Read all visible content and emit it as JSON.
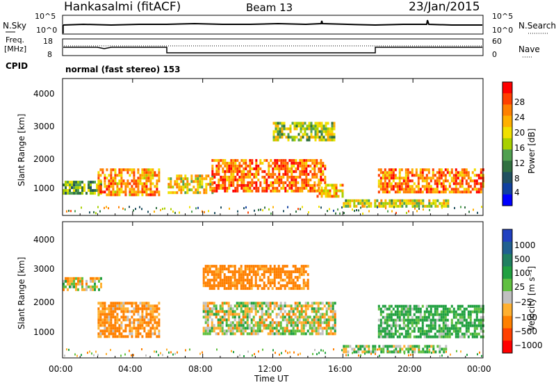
{
  "header": {
    "station": "Hankasalmi (fitACF)",
    "beam": "Beam 13",
    "date": "23/Jan/2015"
  },
  "noise_panel": {
    "left_label": "N.Sky",
    "left_ticks": [
      "10^5",
      "10^0"
    ],
    "right_ticks": [
      "10^5",
      "10^0"
    ],
    "right_label": "N.Search"
  },
  "freq_panel": {
    "left_label_line1": "Freq.",
    "left_label_line2": "[MHz]",
    "left_ticks": [
      "18",
      "8"
    ],
    "right_ticks": [
      "60",
      "0"
    ],
    "right_label": "Nave"
  },
  "cpid": {
    "label": "CPID",
    "text": "normal (fast stereo) 153"
  },
  "axes": {
    "y_label": "Slant Range [km]",
    "y_ticks": [
      "4000",
      "3000",
      "2000",
      "1000"
    ],
    "x_label": "Time UT",
    "x_ticks": [
      "00:00",
      "04:00",
      "08:00",
      "12:00",
      "16:00",
      "20:00",
      "00:00"
    ]
  },
  "power_scale": {
    "label": "Power [dB]",
    "ticks": [
      "28",
      "24",
      "20",
      "16",
      "12",
      "8",
      "4"
    ],
    "colors": [
      "#ff0000",
      "#ff4000",
      "#ff8000",
      "#ffb000",
      "#f0e000",
      "#a8d000",
      "#50a050",
      "#307040",
      "#205060",
      "#1040a0",
      "#0000ff"
    ]
  },
  "velocity_scale": {
    "label": "Velocity [m s⁻¹]",
    "ticks": [
      "1000",
      "500",
      "100",
      "25",
      "−25",
      "−100",
      "−500",
      "−1000"
    ],
    "colors": [
      "#2040c0",
      "#206090",
      "#208060",
      "#20a040",
      "#60c040",
      "#c0c0c0",
      "#ffb030",
      "#ff8000",
      "#ff4000",
      "#ff0000"
    ]
  },
  "chart_data": [
    {
      "type": "heatmap",
      "title": "Power",
      "x": [
        "00:00",
        "04:00",
        "08:00",
        "12:00",
        "16:00",
        "20:00",
        "00:00"
      ],
      "xlabel": "Time UT",
      "ylabel": "Slant Range [km]",
      "ylim": [
        180,
        4600
      ],
      "colorbar": "Power [dB]",
      "colorbar_range": [
        0,
        32
      ],
      "regions": [
        {
          "t_start": 0.0,
          "t_end": 2.2,
          "range_km": [
            900,
            1300
          ],
          "value_db": 14
        },
        {
          "t_start": 2.0,
          "t_end": 5.5,
          "range_km": [
            850,
            1700
          ],
          "value_db": 24
        },
        {
          "t_start": 6.0,
          "t_end": 8.5,
          "range_km": [
            900,
            1500
          ],
          "value_db": 20
        },
        {
          "t_start": 8.5,
          "t_end": 15.0,
          "range_km": [
            950,
            2000
          ],
          "value_db": 26
        },
        {
          "t_start": 12.0,
          "t_end": 15.5,
          "range_km": [
            2600,
            3200
          ],
          "value_db": 16
        },
        {
          "t_start": 14.5,
          "t_end": 16.0,
          "range_km": [
            800,
            1200
          ],
          "value_db": 22
        },
        {
          "t_start": 18.0,
          "t_end": 24.0,
          "range_km": [
            900,
            1700
          ],
          "value_db": 26
        },
        {
          "t_start": 16.0,
          "t_end": 22.0,
          "range_km": [
            450,
            700
          ],
          "value_db": 18
        }
      ]
    },
    {
      "type": "heatmap",
      "title": "Velocity",
      "x": [
        "00:00",
        "04:00",
        "08:00",
        "12:00",
        "16:00",
        "20:00",
        "00:00"
      ],
      "xlabel": "Time UT",
      "ylabel": "Slant Range [km]",
      "ylim": [
        180,
        4600
      ],
      "colorbar": "Velocity [m s⁻¹]",
      "colorbar_range": [
        -1000,
        1000
      ],
      "regions": [
        {
          "t_start": 0.0,
          "t_end": 2.2,
          "range_km": [
            2400,
            2800
          ],
          "value_ms": 0
        },
        {
          "t_start": 2.0,
          "t_end": 5.5,
          "range_km": [
            850,
            2000
          ],
          "value_ms": -150
        },
        {
          "t_start": 8.0,
          "t_end": 15.5,
          "range_km": [
            1000,
            2000
          ],
          "value_ms": 0
        },
        {
          "t_start": 8.0,
          "t_end": 14.0,
          "range_km": [
            2400,
            3200
          ],
          "value_ms": -200
        },
        {
          "t_start": 18.0,
          "t_end": 24.0,
          "range_km": [
            900,
            1900
          ],
          "value_ms": 150
        },
        {
          "t_start": 16.0,
          "t_end": 22.0,
          "range_km": [
            350,
            600
          ],
          "value_ms": 80
        }
      ]
    }
  ]
}
